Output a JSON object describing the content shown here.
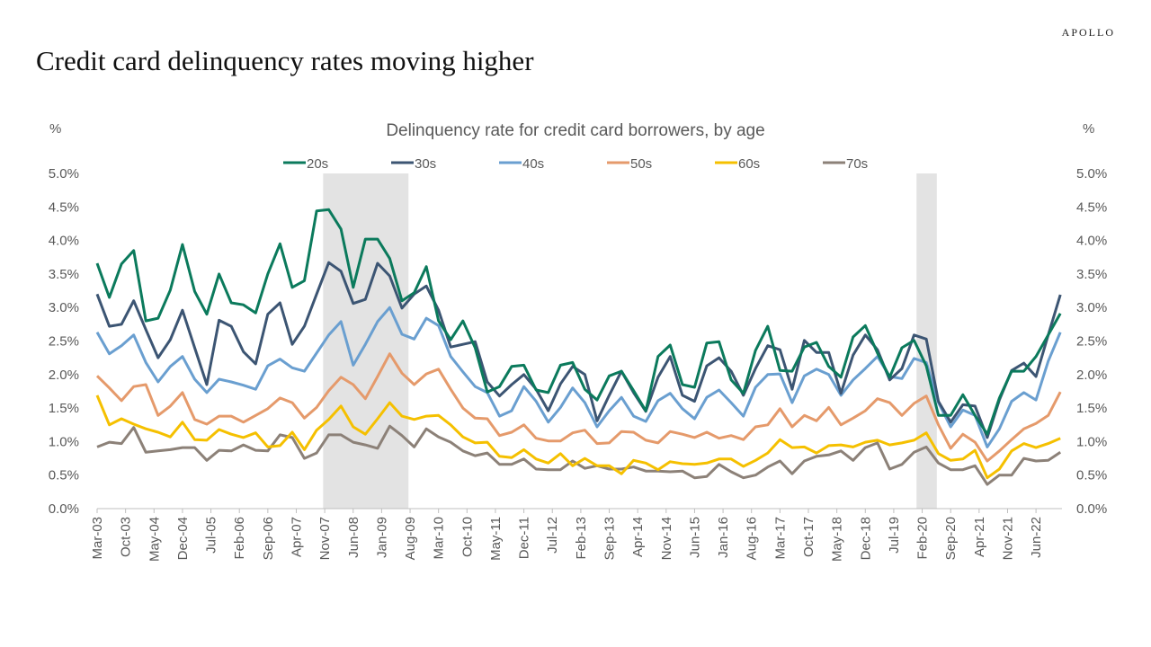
{
  "header": {
    "brand": "APOLLO",
    "title": "Credit card delinquency rates moving higher"
  },
  "chart_data": {
    "type": "line",
    "title": "Delinquency rate for credit card borrowers, by age",
    "ylabel_left": "%",
    "ylabel_right": "%",
    "ylim": [
      0,
      5
    ],
    "yticks": [
      "0.0%",
      "0.5%",
      "1.0%",
      "1.5%",
      "2.0%",
      "2.5%",
      "3.0%",
      "3.5%",
      "4.0%",
      "4.5%",
      "5.0%"
    ],
    "x_start": "Mar-03",
    "x_frequency": "quarterly",
    "xtick_labels": [
      "Mar-03",
      "Oct-03",
      "May-04",
      "Dec-04",
      "Jul-05",
      "Feb-06",
      "Sep-06",
      "Apr-07",
      "Nov-07",
      "Jun-08",
      "Jan-09",
      "Aug-09",
      "Mar-10",
      "Oct-10",
      "May-11",
      "Dec-11",
      "Jul-12",
      "Feb-13",
      "Sep-13",
      "Apr-14",
      "Nov-14",
      "Jun-15",
      "Jan-16",
      "Aug-16",
      "Mar-17",
      "Oct-17",
      "May-18",
      "Dec-18",
      "Jul-19",
      "Feb-20",
      "Sep-20",
      "Apr-21",
      "Nov-21",
      "Jun-22"
    ],
    "legend_position": "top",
    "grid": false,
    "recession_shading": [
      [
        "Dec-07",
        "Jun-09"
      ],
      [
        "Feb-20",
        "Apr-20"
      ]
    ],
    "shading_color": "#e3e3e3",
    "series": [
      {
        "name": "20s",
        "color": "#0b7a5c",
        "values": [
          3.66,
          3.15,
          3.65,
          3.85,
          2.8,
          2.84,
          3.26,
          3.94,
          3.24,
          2.9,
          3.5,
          3.07,
          3.04,
          2.92,
          3.5,
          3.95,
          3.3,
          3.4,
          4.44,
          4.46,
          4.17,
          3.3,
          4.02,
          4.02,
          3.73,
          3.1,
          3.22,
          3.61,
          2.8,
          2.52,
          2.8,
          2.4,
          1.74,
          1.82,
          2.12,
          2.14,
          1.77,
          1.73,
          2.14,
          2.18,
          1.78,
          1.62,
          1.98,
          2.05,
          1.76,
          1.46,
          2.27,
          2.44,
          1.85,
          1.81,
          2.47,
          2.49,
          1.92,
          1.72,
          2.36,
          2.72,
          2.06,
          2.05,
          2.41,
          2.48,
          2.12,
          1.96,
          2.56,
          2.73,
          2.32,
          1.96,
          2.4,
          2.51,
          2.13,
          1.39,
          1.39,
          1.7,
          1.39,
          1.11,
          1.65,
          2.05,
          2.05,
          2.27,
          2.59,
          2.91
        ]
      },
      {
        "name": "30s",
        "color": "#3c5573",
        "values": [
          3.2,
          2.72,
          2.75,
          3.1,
          2.67,
          2.25,
          2.52,
          2.96,
          2.4,
          1.85,
          2.81,
          2.72,
          2.34,
          2.16,
          2.9,
          3.07,
          2.45,
          2.72,
          3.2,
          3.67,
          3.54,
          3.06,
          3.12,
          3.66,
          3.47,
          2.99,
          3.2,
          3.32,
          2.96,
          2.41,
          2.45,
          2.49,
          1.89,
          1.68,
          1.85,
          2.0,
          1.78,
          1.46,
          1.86,
          2.12,
          2.0,
          1.31,
          1.69,
          2.05,
          1.73,
          1.45,
          1.96,
          2.27,
          1.69,
          1.6,
          2.13,
          2.25,
          2.05,
          1.69,
          2.09,
          2.43,
          2.37,
          1.78,
          2.51,
          2.33,
          2.33,
          1.72,
          2.29,
          2.59,
          2.37,
          1.92,
          2.09,
          2.59,
          2.53,
          1.6,
          1.29,
          1.55,
          1.53,
          1.06,
          1.62,
          2.06,
          2.17,
          1.97,
          2.59,
          3.19
        ]
      },
      {
        "name": "40s",
        "color": "#6a9fd0",
        "values": [
          2.63,
          2.31,
          2.43,
          2.59,
          2.18,
          1.89,
          2.12,
          2.27,
          1.93,
          1.73,
          1.93,
          1.89,
          1.84,
          1.78,
          2.13,
          2.23,
          2.1,
          2.05,
          2.32,
          2.59,
          2.79,
          2.14,
          2.45,
          2.79,
          3.0,
          2.6,
          2.53,
          2.84,
          2.73,
          2.27,
          2.04,
          1.82,
          1.73,
          1.38,
          1.46,
          1.82,
          1.6,
          1.29,
          1.51,
          1.8,
          1.58,
          1.22,
          1.46,
          1.66,
          1.38,
          1.3,
          1.61,
          1.72,
          1.49,
          1.34,
          1.66,
          1.77,
          1.58,
          1.38,
          1.81,
          2.0,
          2.01,
          1.58,
          1.98,
          2.08,
          2.0,
          1.69,
          1.92,
          2.09,
          2.27,
          1.97,
          1.94,
          2.24,
          2.18,
          1.58,
          1.22,
          1.47,
          1.39,
          0.92,
          1.19,
          1.6,
          1.73,
          1.62,
          2.2,
          2.63
        ]
      },
      {
        "name": "50s",
        "color": "#e59a6b",
        "values": [
          1.98,
          1.8,
          1.61,
          1.82,
          1.85,
          1.39,
          1.53,
          1.73,
          1.33,
          1.26,
          1.38,
          1.38,
          1.29,
          1.39,
          1.49,
          1.65,
          1.58,
          1.35,
          1.51,
          1.76,
          1.96,
          1.85,
          1.64,
          1.97,
          2.31,
          2.02,
          1.85,
          2.01,
          2.08,
          1.78,
          1.5,
          1.35,
          1.34,
          1.09,
          1.14,
          1.25,
          1.05,
          1.01,
          1.01,
          1.13,
          1.17,
          0.97,
          0.98,
          1.15,
          1.14,
          1.02,
          0.98,
          1.15,
          1.11,
          1.06,
          1.14,
          1.05,
          1.09,
          1.03,
          1.22,
          1.25,
          1.49,
          1.22,
          1.39,
          1.31,
          1.51,
          1.25,
          1.35,
          1.46,
          1.64,
          1.58,
          1.39,
          1.57,
          1.68,
          1.25,
          0.9,
          1.11,
          0.99,
          0.71,
          0.86,
          1.03,
          1.19,
          1.27,
          1.39,
          1.74
        ]
      },
      {
        "name": "60s",
        "color": "#f5c000",
        "values": [
          1.69,
          1.25,
          1.34,
          1.26,
          1.19,
          1.14,
          1.07,
          1.29,
          1.03,
          1.02,
          1.18,
          1.11,
          1.06,
          1.13,
          0.92,
          0.94,
          1.14,
          0.88,
          1.17,
          1.33,
          1.53,
          1.22,
          1.11,
          1.34,
          1.58,
          1.38,
          1.33,
          1.38,
          1.39,
          1.25,
          1.07,
          0.98,
          0.99,
          0.78,
          0.76,
          0.88,
          0.74,
          0.68,
          0.82,
          0.64,
          0.75,
          0.64,
          0.64,
          0.52,
          0.72,
          0.68,
          0.58,
          0.7,
          0.67,
          0.66,
          0.68,
          0.74,
          0.74,
          0.63,
          0.72,
          0.83,
          1.03,
          0.91,
          0.92,
          0.83,
          0.94,
          0.95,
          0.92,
          0.99,
          1.02,
          0.95,
          0.98,
          1.02,
          1.13,
          0.82,
          0.72,
          0.74,
          0.87,
          0.46,
          0.59,
          0.86,
          0.97,
          0.91,
          0.97,
          1.05
        ]
      },
      {
        "name": "70s",
        "color": "#8c8178",
        "values": [
          0.92,
          0.99,
          0.97,
          1.21,
          0.84,
          0.86,
          0.88,
          0.91,
          0.91,
          0.72,
          0.87,
          0.86,
          0.95,
          0.87,
          0.86,
          1.1,
          1.06,
          0.75,
          0.83,
          1.1,
          1.1,
          0.99,
          0.95,
          0.9,
          1.23,
          1.09,
          0.92,
          1.19,
          1.07,
          0.99,
          0.86,
          0.79,
          0.83,
          0.66,
          0.66,
          0.74,
          0.59,
          0.58,
          0.58,
          0.71,
          0.6,
          0.64,
          0.59,
          0.59,
          0.62,
          0.56,
          0.56,
          0.55,
          0.56,
          0.46,
          0.48,
          0.66,
          0.55,
          0.46,
          0.5,
          0.62,
          0.71,
          0.52,
          0.71,
          0.78,
          0.8,
          0.86,
          0.72,
          0.91,
          0.98,
          0.59,
          0.66,
          0.84,
          0.92,
          0.68,
          0.58,
          0.58,
          0.64,
          0.36,
          0.5,
          0.5,
          0.75,
          0.71,
          0.72,
          0.84
        ]
      }
    ]
  }
}
